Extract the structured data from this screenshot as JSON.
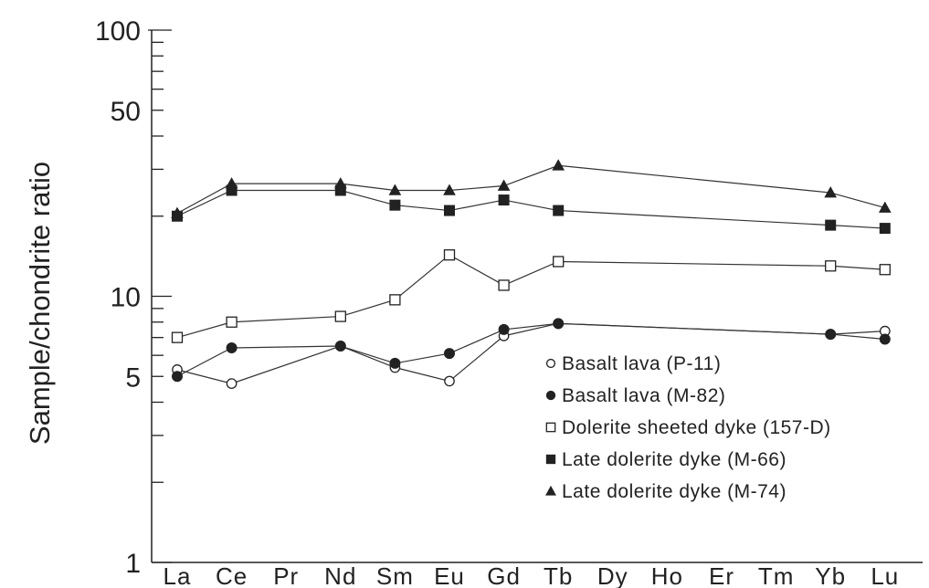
{
  "chart_data": {
    "type": "line",
    "title": "",
    "xlabel": "",
    "ylabel": "Sample/chondrite ratio",
    "yscale": "log",
    "ylim": [
      1,
      100
    ],
    "yticks": [
      {
        "value": 1,
        "label": "1"
      },
      {
        "value": 5,
        "label": "5"
      },
      {
        "value": 10,
        "label": "10"
      },
      {
        "value": 50,
        "label": "50"
      },
      {
        "value": 100,
        "label": "100"
      }
    ],
    "categories": [
      "La",
      "Ce",
      "Pr",
      "Nd",
      "Sm",
      "Eu",
      "Gd",
      "Tb",
      "Dy",
      "Ho",
      "Er",
      "Tm",
      "Yb",
      "Lu"
    ],
    "legend_position": "bottom-right",
    "series": [
      {
        "name": "Basalt lava (P-11)",
        "marker": "open-circle",
        "points": [
          {
            "x": "La",
            "y": 5.3
          },
          {
            "x": "Ce",
            "y": 4.7
          },
          {
            "x": "Nd",
            "y": 6.5
          },
          {
            "x": "Sm",
            "y": 5.4
          },
          {
            "x": "Eu",
            "y": 4.8
          },
          {
            "x": "Gd",
            "y": 7.1
          },
          {
            "x": "Tb",
            "y": 7.9
          },
          {
            "x": "Yb",
            "y": 7.2
          },
          {
            "x": "Lu",
            "y": 7.4
          }
        ]
      },
      {
        "name": "Basalt lava (M-82)",
        "marker": "filled-circle",
        "points": [
          {
            "x": "La",
            "y": 5.0
          },
          {
            "x": "Ce",
            "y": 6.4
          },
          {
            "x": "Nd",
            "y": 6.5
          },
          {
            "x": "Sm",
            "y": 5.6
          },
          {
            "x": "Eu",
            "y": 6.1
          },
          {
            "x": "Gd",
            "y": 7.5
          },
          {
            "x": "Tb",
            "y": 7.9
          },
          {
            "x": "Yb",
            "y": 7.2
          },
          {
            "x": "Lu",
            "y": 6.9
          }
        ]
      },
      {
        "name": "Dolerite sheeted dyke (157-D)",
        "marker": "open-square",
        "points": [
          {
            "x": "La",
            "y": 7.0
          },
          {
            "x": "Ce",
            "y": 8.0
          },
          {
            "x": "Nd",
            "y": 8.4
          },
          {
            "x": "Sm",
            "y": 9.7
          },
          {
            "x": "Eu",
            "y": 14.3
          },
          {
            "x": "Gd",
            "y": 11.0
          },
          {
            "x": "Tb",
            "y": 13.5
          },
          {
            "x": "Yb",
            "y": 13.0
          },
          {
            "x": "Lu",
            "y": 12.6
          }
        ]
      },
      {
        "name": "Late dolerite dyke (M-66)",
        "marker": "filled-square",
        "points": [
          {
            "x": "La",
            "y": 20.0
          },
          {
            "x": "Ce",
            "y": 25.0
          },
          {
            "x": "Nd",
            "y": 25.0
          },
          {
            "x": "Sm",
            "y": 22.0
          },
          {
            "x": "Eu",
            "y": 21.0
          },
          {
            "x": "Gd",
            "y": 23.0
          },
          {
            "x": "Tb",
            "y": 21.0
          },
          {
            "x": "Yb",
            "y": 18.5
          },
          {
            "x": "Lu",
            "y": 18.0
          }
        ]
      },
      {
        "name": "Late dolerite dyke (M-74)",
        "marker": "filled-triangle",
        "points": [
          {
            "x": "La",
            "y": 20.5
          },
          {
            "x": "Ce",
            "y": 26.5
          },
          {
            "x": "Nd",
            "y": 26.5
          },
          {
            "x": "Sm",
            "y": 25.0
          },
          {
            "x": "Eu",
            "y": 25.0
          },
          {
            "x": "Gd",
            "y": 26.0
          },
          {
            "x": "Tb",
            "y": 31.0
          },
          {
            "x": "Yb",
            "y": 24.5
          },
          {
            "x": "Lu",
            "y": 21.5
          }
        ]
      }
    ]
  }
}
